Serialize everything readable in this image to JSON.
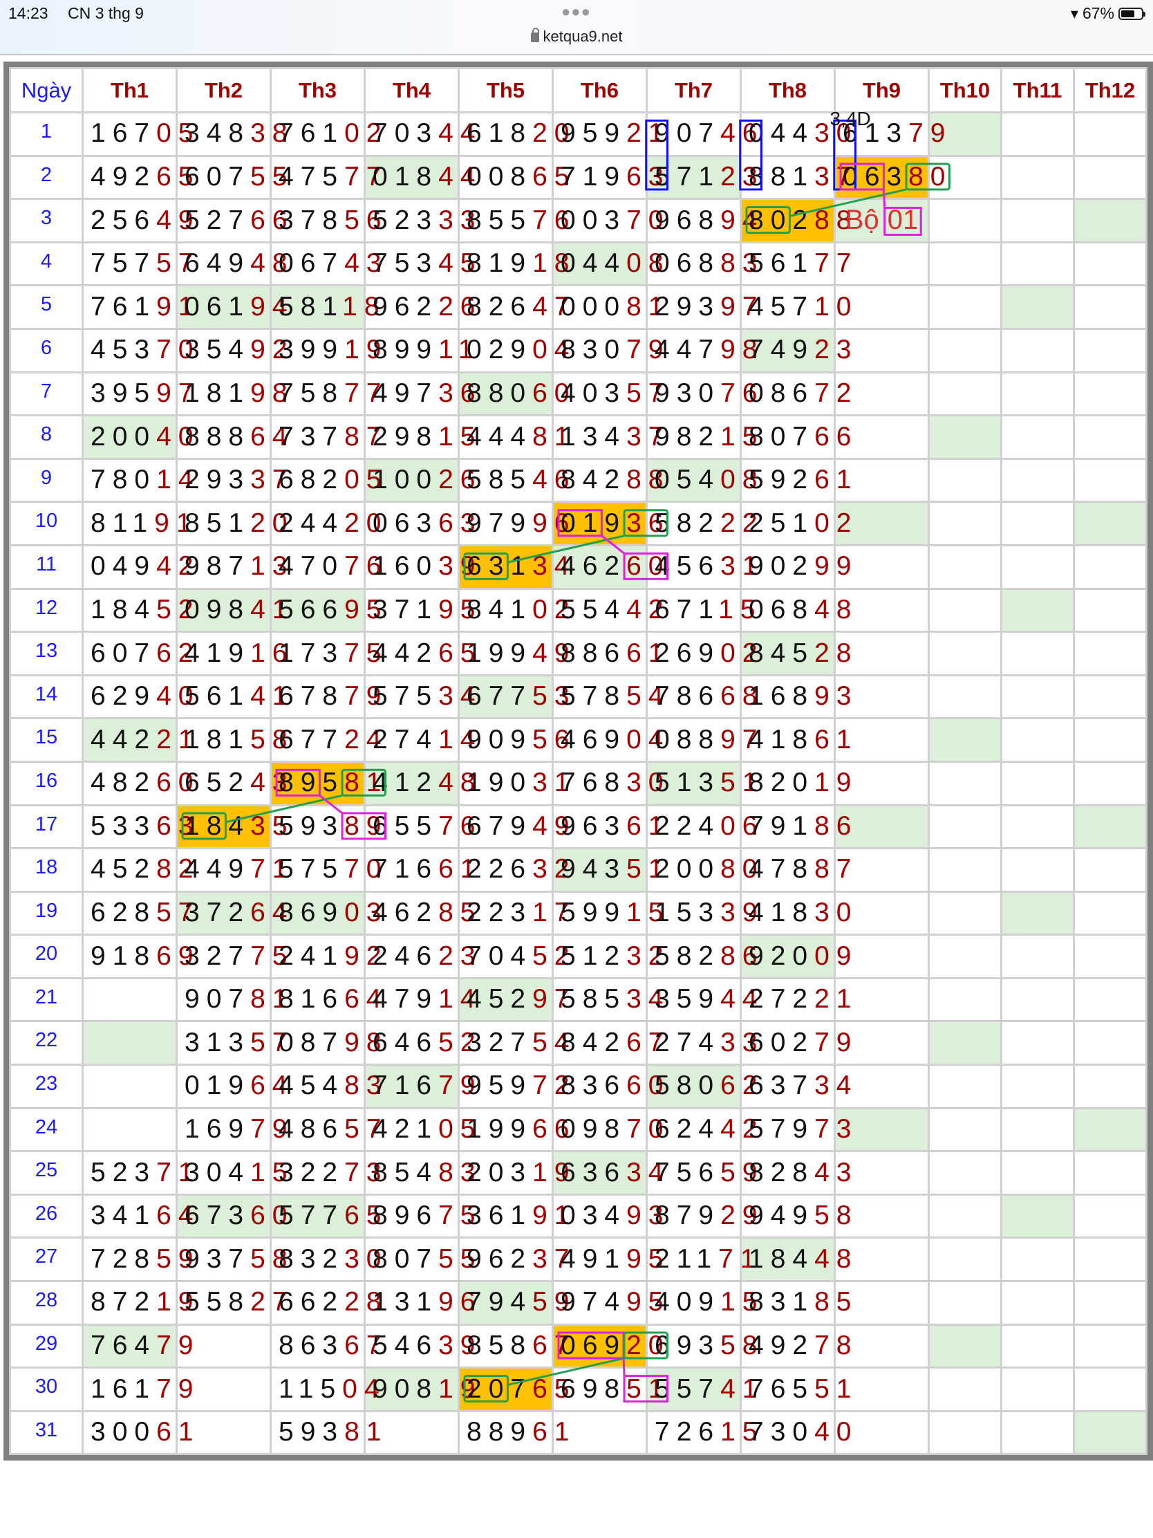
{
  "status_bar": {
    "time": "14:23",
    "date": "CN 3 thg 9",
    "battery": "67%",
    "battery_level": 0.67,
    "url": "ketqua9.net"
  },
  "table": {
    "headers": [
      "Ngày",
      "Th1",
      "Th2",
      "Th3",
      "Th4",
      "Th5",
      "Th6",
      "Th7",
      "Th8",
      "Th9",
      "Th10",
      "Th11",
      "Th12"
    ],
    "days": [
      "1",
      "2",
      "3",
      "4",
      "5",
      "6",
      "7",
      "8",
      "9",
      "10",
      "11",
      "12",
      "13",
      "14",
      "15",
      "16",
      "17",
      "18",
      "19",
      "20",
      "21",
      "22",
      "23",
      "24",
      "25",
      "26",
      "27",
      "28",
      "29",
      "30",
      "31"
    ],
    "rows": [
      [
        "16705",
        "34838",
        "76102",
        "70344",
        "61820",
        "95921",
        "90746",
        "04430",
        "61379",
        "",
        "",
        ""
      ],
      [
        "49265",
        "60755",
        "47577",
        "01844",
        "00865",
        "71963",
        "57123",
        "88137",
        "06380",
        "",
        "",
        ""
      ],
      [
        "25649",
        "52766",
        "37856",
        "52333",
        "85576",
        "00370",
        "96894",
        "80288",
        "",
        "",
        "",
        ""
      ],
      [
        "75757",
        "64948",
        "06743",
        "75345",
        "81918",
        "04408",
        "06883",
        "56177",
        "",
        "",
        "",
        ""
      ],
      [
        "76191",
        "06194",
        "58118",
        "96226",
        "82647",
        "00081",
        "29397",
        "45710",
        "",
        "",
        "",
        ""
      ],
      [
        "45370",
        "35492",
        "39919",
        "89911",
        "02904",
        "83079",
        "44798",
        "74923",
        "",
        "",
        "",
        ""
      ],
      [
        "39597",
        "18198",
        "75877",
        "49736",
        "88060",
        "40357",
        "93076",
        "08672",
        "",
        "",
        "",
        ""
      ],
      [
        "20040",
        "88864",
        "73787",
        "29815",
        "44481",
        "13437",
        "98215",
        "80766",
        "",
        "",
        "",
        ""
      ],
      [
        "78014",
        "29337",
        "68205",
        "10026",
        "58546",
        "84288",
        "05408",
        "59261",
        "",
        "",
        "",
        ""
      ],
      [
        "81191",
        "85120",
        "24420",
        "06363",
        "97996",
        "01936",
        "58222",
        "25102",
        "",
        "",
        "",
        ""
      ],
      [
        "04942",
        "98713",
        "47076",
        "16039",
        "63134",
        "46260",
        "45631",
        "90299",
        "",
        "",
        "",
        ""
      ],
      [
        "18452",
        "09841",
        "56695",
        "37195",
        "84102",
        "55442",
        "67115",
        "06848",
        "",
        "",
        "",
        ""
      ],
      [
        "60762",
        "41916",
        "17375",
        "44265",
        "19949",
        "88661",
        "26902",
        "84528",
        "",
        "",
        "",
        ""
      ],
      [
        "62940",
        "56141",
        "67879",
        "57534",
        "67753",
        "57854",
        "78668",
        "16893",
        "",
        "",
        "",
        ""
      ],
      [
        "44221",
        "18158",
        "67724",
        "27414",
        "90956",
        "46904",
        "08897",
        "41861",
        "",
        "",
        "",
        ""
      ],
      [
        "48260",
        "65243",
        "89581",
        "41248",
        "19031",
        "76830",
        "51351",
        "82019",
        "",
        "",
        "",
        ""
      ],
      [
        "53363",
        "18435",
        "59389",
        "65576",
        "67949",
        "96361",
        "22406",
        "79186",
        "",
        "",
        "",
        ""
      ],
      [
        "45282",
        "44971",
        "57570",
        "71661",
        "22632",
        "94351",
        "20080",
        "47887",
        "",
        "",
        "",
        ""
      ],
      [
        "62857",
        "37264",
        "86903",
        "46285",
        "22317",
        "59915",
        "15339",
        "41830",
        "",
        "",
        "",
        ""
      ],
      [
        "91869",
        "32775",
        "24192",
        "24623",
        "70452",
        "51232",
        "58286",
        "92009",
        "",
        "",
        "",
        ""
      ],
      [
        "",
        "90781",
        "81664",
        "47914",
        "45297",
        "58534",
        "35944",
        "27221",
        "",
        "",
        "",
        ""
      ],
      [
        "",
        "31357",
        "08798",
        "64652",
        "32754",
        "84267",
        "27433",
        "60279",
        "",
        "",
        "",
        ""
      ],
      [
        "",
        "01964",
        "45483",
        "71679",
        "95972",
        "83660",
        "58062",
        "63734",
        "",
        "",
        "",
        ""
      ],
      [
        "",
        "16979",
        "48657",
        "42105",
        "19966",
        "09870",
        "62442",
        "57973",
        "",
        "",
        "",
        ""
      ],
      [
        "52371",
        "30415",
        "32273",
        "85483",
        "20319",
        "63634",
        "75659",
        "82843",
        "",
        "",
        "",
        ""
      ],
      [
        "34164",
        "67360",
        "57765",
        "89675",
        "36191",
        "03493",
        "87929",
        "94958",
        "",
        "",
        "",
        ""
      ],
      [
        "72859",
        "93758",
        "83230",
        "80755",
        "96237",
        "49195",
        "21171",
        "18448",
        "",
        "",
        "",
        ""
      ],
      [
        "87219",
        "55827",
        "66228",
        "13196",
        "79459",
        "97495",
        "40915",
        "83185",
        "",
        "",
        "",
        ""
      ],
      [
        "76479",
        "",
        "86367",
        "54639",
        "85867",
        "06920",
        "69358",
        "49278",
        "",
        "",
        "",
        ""
      ],
      [
        "16179",
        "",
        "11504",
        "90819",
        "20765",
        "69851",
        "55741",
        "76551",
        "",
        "",
        "",
        ""
      ],
      [
        "30061",
        "",
        "59381",
        "",
        "88961",
        "",
        "72615",
        "73040",
        "",
        "",
        "",
        ""
      ]
    ],
    "green_cells": [
      [
        1,
        10
      ],
      [
        2,
        4
      ],
      [
        2,
        7
      ],
      [
        3,
        9
      ],
      [
        3,
        12
      ],
      [
        4,
        6
      ],
      [
        5,
        2
      ],
      [
        5,
        3
      ],
      [
        5,
        11
      ],
      [
        6,
        8
      ],
      [
        7,
        5
      ],
      [
        8,
        1
      ],
      [
        8,
        10
      ],
      [
        9,
        4
      ],
      [
        9,
        7
      ],
      [
        10,
        9
      ],
      [
        10,
        12
      ],
      [
        11,
        6
      ],
      [
        12,
        2
      ],
      [
        12,
        3
      ],
      [
        12,
        11
      ],
      [
        13,
        8
      ],
      [
        14,
        5
      ],
      [
        15,
        1
      ],
      [
        15,
        10
      ],
      [
        16,
        4
      ],
      [
        16,
        7
      ],
      [
        17,
        9
      ],
      [
        17,
        12
      ],
      [
        18,
        6
      ],
      [
        19,
        2
      ],
      [
        19,
        3
      ],
      [
        19,
        11
      ],
      [
        20,
        8
      ],
      [
        21,
        5
      ],
      [
        22,
        1
      ],
      [
        22,
        10
      ],
      [
        23,
        4
      ],
      [
        23,
        7
      ],
      [
        24,
        9
      ],
      [
        24,
        12
      ],
      [
        25,
        6
      ],
      [
        26,
        2
      ],
      [
        26,
        3
      ],
      [
        26,
        11
      ],
      [
        27,
        8
      ],
      [
        28,
        5
      ],
      [
        29,
        1
      ],
      [
        29,
        10
      ],
      [
        30,
        4
      ],
      [
        30,
        7
      ],
      [
        31,
        12
      ]
    ],
    "orange_cells": [
      [
        2,
        9
      ],
      [
        3,
        8
      ],
      [
        10,
        6
      ],
      [
        11,
        5
      ],
      [
        16,
        3
      ],
      [
        17,
        2
      ],
      [
        29,
        6
      ],
      [
        30,
        5
      ]
    ]
  },
  "annotations": {
    "note_label": "3,4D",
    "bo_cell": {
      "day": 3,
      "month": 9,
      "label": "Bộ",
      "value": "01"
    },
    "colors": {
      "blue": "#1010ff",
      "magenta": "#e020e0",
      "green": "#20a050",
      "orange": "#ffc000",
      "light_green": "#dcefd8",
      "dark_red": "#a00000"
    },
    "boxes": [
      {
        "day": 1,
        "day_end": 2,
        "month": 6,
        "from": 4,
        "to": 4,
        "color": "blue"
      },
      {
        "day": 1,
        "day_end": 2,
        "month": 7,
        "from": 4,
        "to": 4,
        "color": "blue"
      },
      {
        "day": 1,
        "day_end": 2,
        "month": 8,
        "from": 4,
        "to": 4,
        "color": "blue"
      },
      {
        "day": 2,
        "month": 9,
        "from": 0,
        "to": 1,
        "color": "magenta"
      },
      {
        "day": 2,
        "month": 9,
        "from": 3,
        "to": 4,
        "color": "green"
      },
      {
        "day": 3,
        "month": 8,
        "from": 0,
        "to": 1,
        "color": "green"
      },
      {
        "target": "bo",
        "color": "magenta"
      },
      {
        "day": 10,
        "month": 6,
        "from": 0,
        "to": 1,
        "color": "magenta"
      },
      {
        "day": 10,
        "month": 6,
        "from": 3,
        "to": 4,
        "color": "green"
      },
      {
        "day": 11,
        "month": 5,
        "from": 0,
        "to": 1,
        "color": "green"
      },
      {
        "day": 11,
        "month": 6,
        "from": 3,
        "to": 4,
        "color": "magenta"
      },
      {
        "day": 16,
        "month": 3,
        "from": 0,
        "to": 1,
        "color": "magenta"
      },
      {
        "day": 16,
        "month": 3,
        "from": 3,
        "to": 4,
        "color": "green"
      },
      {
        "day": 17,
        "month": 2,
        "from": 0,
        "to": 1,
        "color": "green"
      },
      {
        "day": 17,
        "month": 3,
        "from": 3,
        "to": 4,
        "color": "magenta"
      },
      {
        "day": 29,
        "month": 6,
        "from": 0,
        "to": 2,
        "color": "magenta"
      },
      {
        "day": 29,
        "month": 6,
        "from": 3,
        "to": 4,
        "color": "green"
      },
      {
        "day": 30,
        "month": 5,
        "from": 0,
        "to": 1,
        "color": "green"
      },
      {
        "day": 30,
        "month": 6,
        "from": 3,
        "to": 4,
        "color": "magenta"
      }
    ],
    "links": [
      {
        "from": 4,
        "to": 5,
        "color": "green"
      },
      {
        "from": 3,
        "to": 6,
        "color": "magenta"
      },
      {
        "from": 8,
        "to": 9,
        "color": "green"
      },
      {
        "from": 7,
        "to": 10,
        "color": "magenta"
      },
      {
        "from": 12,
        "to": 13,
        "color": "green"
      },
      {
        "from": 11,
        "to": 14,
        "color": "magenta"
      },
      {
        "from": 16,
        "to": 17,
        "color": "green"
      },
      {
        "from": 15,
        "to": 18,
        "color": "magenta"
      }
    ]
  }
}
